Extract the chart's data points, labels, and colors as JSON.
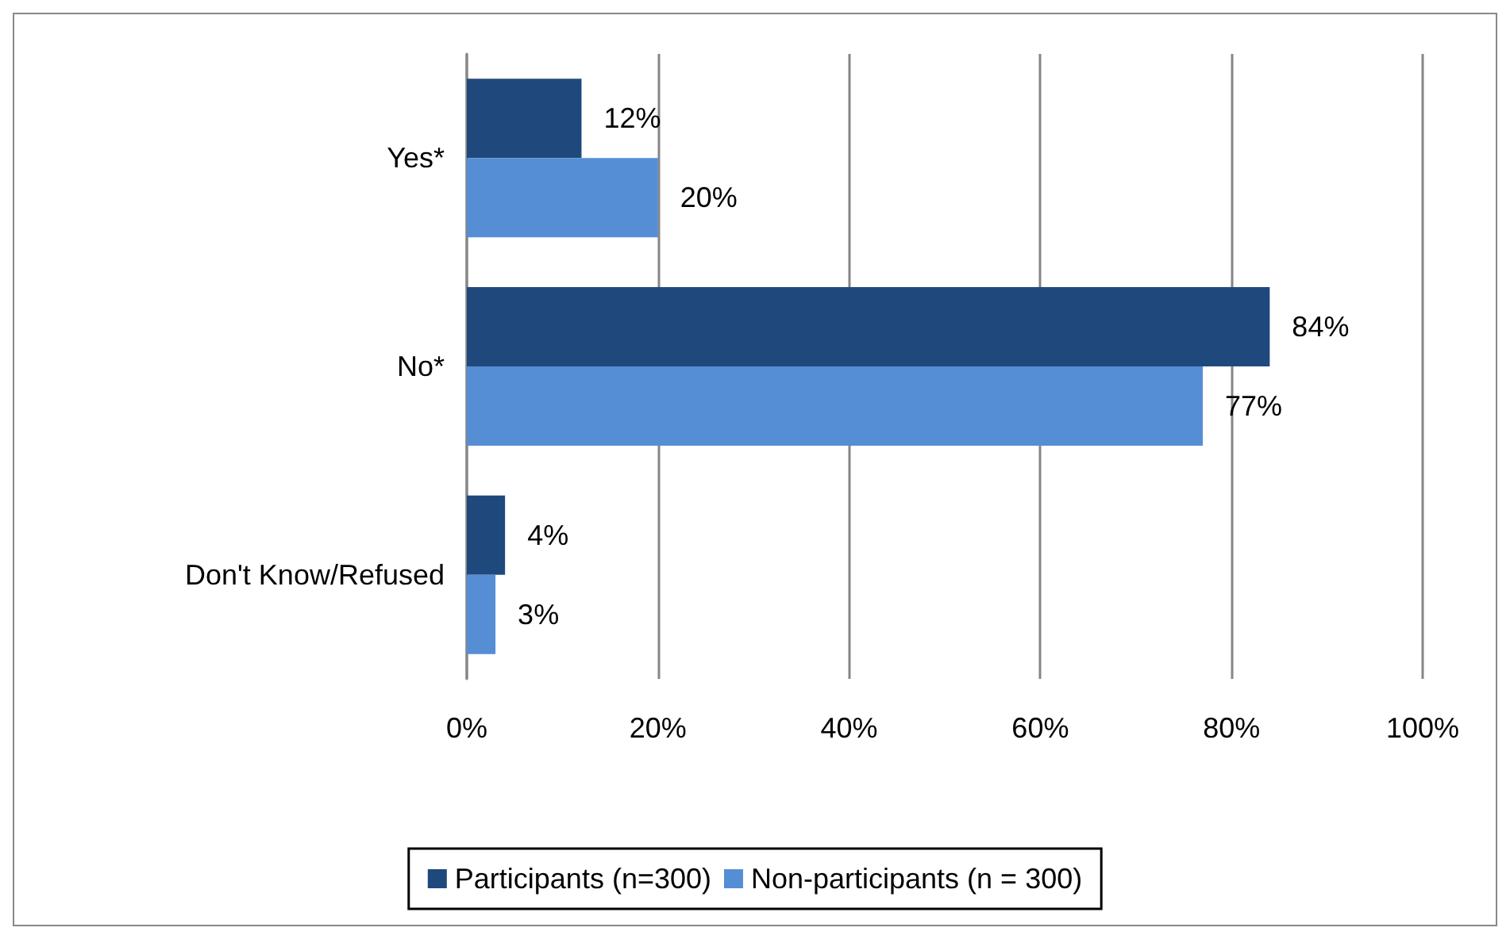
{
  "chart_data": {
    "type": "bar",
    "orientation": "horizontal",
    "categories": [
      "Yes*",
      "No*",
      "Don't Know/Refused"
    ],
    "series": [
      {
        "name": "Participants (n=300)",
        "color": "#1f497d",
        "values": [
          12,
          84,
          4
        ],
        "value_labels": [
          "12%",
          "84%",
          "4%"
        ]
      },
      {
        "name": "Non-participants (n = 300)",
        "color": "#558ed5",
        "values": [
          20,
          77,
          3
        ],
        "value_labels": [
          "20%",
          "77%",
          "3%"
        ]
      }
    ],
    "xlim": [
      0,
      100
    ],
    "xticks": [
      {
        "value": 0,
        "label": "0%"
      },
      {
        "value": 20,
        "label": "20%"
      },
      {
        "value": 40,
        "label": "40%"
      },
      {
        "value": 60,
        "label": "60%"
      },
      {
        "value": 80,
        "label": "80%"
      },
      {
        "value": 100,
        "label": "100%"
      }
    ],
    "grid": "x",
    "legend": "bottom"
  }
}
